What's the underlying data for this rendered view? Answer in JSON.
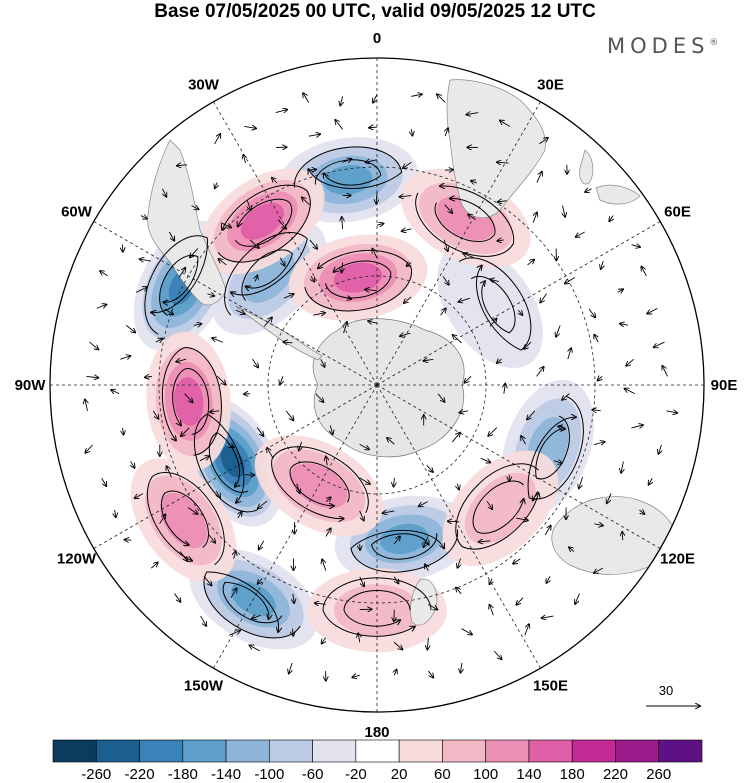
{
  "title": "Base 07/05/2025 00 UTC, valid 09/05/2025 12 UTC",
  "brand": "MODES",
  "brand_mark": "®",
  "longitude_labels": [
    {
      "text": "0",
      "lon": 0
    },
    {
      "text": "30E",
      "lon": 30
    },
    {
      "text": "60E",
      "lon": 60
    },
    {
      "text": "90E",
      "lon": 90
    },
    {
      "text": "120E",
      "lon": 120
    },
    {
      "text": "150E",
      "lon": 150
    },
    {
      "text": "180",
      "lon": 180
    },
    {
      "text": "150W",
      "lon": -150
    },
    {
      "text": "120W",
      "lon": -120
    },
    {
      "text": "90W",
      "lon": -90
    },
    {
      "text": "60W",
      "lon": -60
    },
    {
      "text": "30W",
      "lon": -30
    }
  ],
  "vector_reference": {
    "label": "30"
  },
  "colorbar": {
    "colors": [
      "#0b3b5e",
      "#1b5f8f",
      "#3b82b8",
      "#5e9fcb",
      "#8eb6da",
      "#bccae4",
      "#e3e2ef",
      "#ffffff",
      "#f8dcdc",
      "#f2b8c6",
      "#ec8fb5",
      "#e060a8",
      "#c42a94",
      "#9c1a8a",
      "#5e1185"
    ],
    "labels": [
      "-260",
      "-220",
      "-180",
      "-140",
      "-100",
      "-60",
      "-20",
      "20",
      "60",
      "100",
      "140",
      "180",
      "220",
      "260"
    ]
  },
  "anomalies": [
    {
      "name": "anomaly-neg-1",
      "sign": "neg",
      "level": 4,
      "lon": -8,
      "lat": -33
    },
    {
      "name": "anomaly-neg-2",
      "sign": "neg",
      "level": 5,
      "lon": -63,
      "lat": -30
    },
    {
      "name": "anomaly-neg-3",
      "sign": "neg",
      "level": 3,
      "lon": -45,
      "lat": -48
    },
    {
      "name": "anomaly-neg-4",
      "sign": "neg",
      "level": 6,
      "lon": -118,
      "lat": -45
    },
    {
      "name": "anomaly-neg-5",
      "sign": "neg",
      "level": 4,
      "lon": 170,
      "lat": -47
    },
    {
      "name": "anomaly-neg-6",
      "sign": "neg",
      "level": 4,
      "lon": -150,
      "lat": -22
    },
    {
      "name": "anomaly-neg-7",
      "sign": "neg",
      "level": 3,
      "lon": 110,
      "lat": -40
    },
    {
      "name": "anomaly-neg-8",
      "sign": "neg",
      "level": 1,
      "lon": 55,
      "lat": -52
    },
    {
      "name": "anomaly-pos-1",
      "sign": "pos",
      "level": 4,
      "lon": -35,
      "lat": -35
    },
    {
      "name": "anomaly-pos-2",
      "sign": "pos",
      "level": 4,
      "lon": -95,
      "lat": -38
    },
    {
      "name": "anomaly-pos-3",
      "sign": "pos",
      "level": 4,
      "lon": -10,
      "lat": -60
    },
    {
      "name": "anomaly-pos-4",
      "sign": "pos",
      "level": 3,
      "lon": 28,
      "lat": -38
    },
    {
      "name": "anomaly-pos-5",
      "sign": "pos",
      "level": 3,
      "lon": -150,
      "lat": -58
    },
    {
      "name": "anomaly-pos-6",
      "sign": "pos",
      "level": 3,
      "lon": -125,
      "lat": -25
    },
    {
      "name": "anomaly-pos-7",
      "sign": "pos",
      "level": 2,
      "lon": 180,
      "lat": -28
    },
    {
      "name": "anomaly-pos-8",
      "sign": "pos",
      "level": 2,
      "lon": 135,
      "lat": -42
    }
  ]
}
